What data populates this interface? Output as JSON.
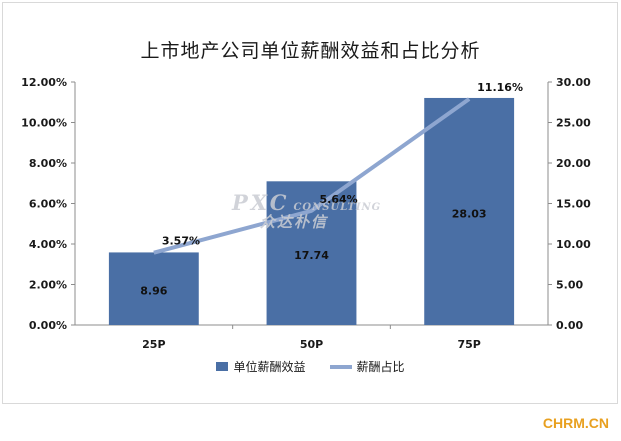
{
  "chart_data": {
    "type": "bar+line",
    "title": "上市地产公司单位薪酬效益和占比分析",
    "categories": [
      "25P",
      "50P",
      "75P"
    ],
    "bar_series": {
      "name": "单位薪酬效益",
      "values": [
        8.96,
        17.74,
        28.03
      ],
      "value_labels": [
        "8.96",
        "17.74",
        "28.03"
      ],
      "axis": "right",
      "color": "#4a6fa5"
    },
    "line_series": {
      "name": "薪酬占比",
      "values": [
        3.57,
        5.64,
        11.16
      ],
      "value_labels": [
        "3.57%",
        "5.64%",
        "11.16%"
      ],
      "axis": "left",
      "color": "#8ea6d0"
    },
    "left_axis": {
      "ylim": [
        0,
        12
      ],
      "ticks": [
        "0.00%",
        "2.00%",
        "4.00%",
        "6.00%",
        "8.00%",
        "10.00%",
        "12.00%"
      ]
    },
    "right_axis": {
      "ylim": [
        0,
        30
      ],
      "ticks": [
        "0.00",
        "5.00",
        "10.00",
        "15.00",
        "20.00",
        "25.00",
        "30.00"
      ]
    },
    "legend_position": "bottom",
    "grid": false
  },
  "watermark": {
    "text": "PXC",
    "sub": "CONSULTING",
    "cn": "众达朴信"
  },
  "brand": "CHRM.CN"
}
